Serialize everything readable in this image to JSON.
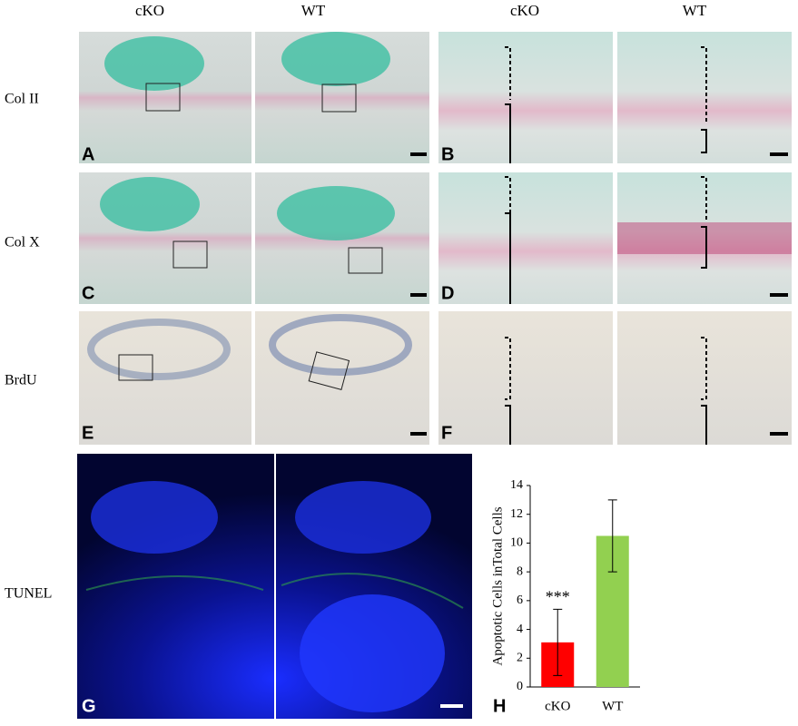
{
  "column_headers": [
    "cKO",
    "WT",
    "cKO",
    "WT"
  ],
  "row_labels": [
    "Col II",
    "Col X",
    "BrdU",
    "TUNEL"
  ],
  "panel_labels": [
    "A",
    "B",
    "C",
    "D",
    "E",
    "F",
    "G",
    "H"
  ],
  "chart_data": {
    "type": "bar",
    "ylabel": "Apoptotic Cells inTotal Cells",
    "categories": [
      "cKO",
      "WT"
    ],
    "values": [
      3.1,
      10.5
    ],
    "errors": [
      2.3,
      2.5
    ],
    "colors": [
      "#ff0000",
      "#92d050"
    ],
    "annotation": "***",
    "ylim": [
      0,
      14
    ],
    "yticks": [
      0,
      2,
      4,
      6,
      8,
      10,
      12,
      14
    ]
  }
}
